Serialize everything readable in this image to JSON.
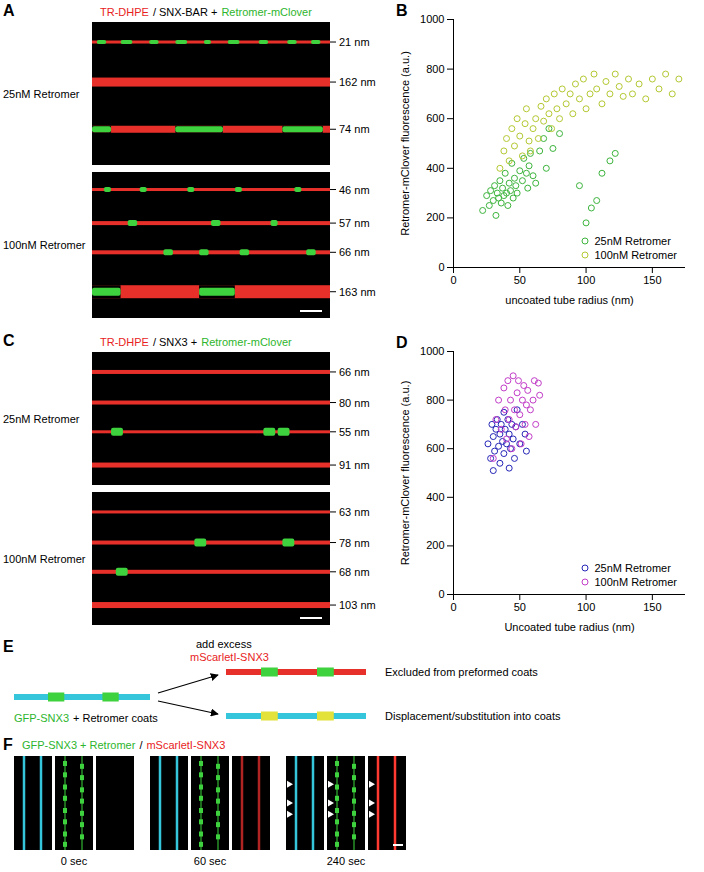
{
  "panels": {
    "A": {
      "letter": "A",
      "header": [
        {
          "text": "TR-DHPE",
          "color": "#e8231d"
        },
        {
          "text": "/ SNX-BAR +",
          "color": "#000000"
        },
        {
          "text": "Retromer-mClover",
          "color": "#2db52d"
        }
      ],
      "groups": [
        {
          "label": "25nM Retromer",
          "tubes": [
            "21 nm",
            "162 nm",
            "74 nm"
          ]
        },
        {
          "label": "100nM Retromer",
          "tubes": [
            "46 nm",
            "57 nm",
            "66 nm",
            "163 nm"
          ]
        }
      ]
    },
    "C": {
      "letter": "C",
      "header": [
        {
          "text": "TR-DHPE",
          "color": "#e8231d"
        },
        {
          "text": "/ SNX3 +",
          "color": "#000000"
        },
        {
          "text": "Retromer-mClover",
          "color": "#2db52d"
        }
      ],
      "groups": [
        {
          "label": "25nM Retromer",
          "tubes": [
            "66 nm",
            "80 nm",
            "55 nm",
            "91 nm"
          ]
        },
        {
          "label": "100nM Retromer",
          "tubes": [
            "63 nm",
            "78 nm",
            "68 nm",
            "103 nm"
          ]
        }
      ]
    },
    "E": {
      "letter": "E",
      "start": [
        {
          "text": "GFP-SNX3",
          "color": "#2db52d"
        },
        {
          "text": "+ Retromer coats",
          "color": "#000000"
        }
      ],
      "action": [
        {
          "text": "add excess",
          "color": "#000000"
        },
        {
          "text": "mScarletI-SNX3",
          "color": "#e8231d"
        }
      ],
      "outcomes": [
        "Excluded from preformed coats",
        "Displacement/substitution into coats"
      ]
    },
    "F": {
      "letter": "F",
      "header": [
        {
          "text": "GFP-SNX3 + Retromer",
          "color": "#2db52d"
        },
        {
          "text": "/",
          "color": "#000000"
        },
        {
          "text": "mScarletI-SNX3",
          "color": "#e8231d"
        }
      ],
      "times": [
        "0 sec",
        "60 sec",
        "240 sec"
      ]
    }
  },
  "chart_data": [
    {
      "panel": "B",
      "type": "scatter",
      "xlabel": "uncoated tube radius (nm)",
      "ylabel": "Retromer-mClover fluorescence (a.u.)",
      "xlim": [
        0,
        175
      ],
      "xticks": [
        0,
        50,
        100,
        150
      ],
      "ylim": [
        0,
        1000
      ],
      "yticks": [
        0,
        200,
        400,
        600,
        800,
        1000
      ],
      "legend": "bottom-right",
      "marker": "open circle",
      "series": [
        {
          "name": "25nM Retromer",
          "color": "#3cb43c",
          "x": [
            22,
            25,
            27,
            28,
            30,
            31,
            32,
            33,
            34,
            35,
            36,
            37,
            38,
            39,
            40,
            41,
            42,
            43,
            44,
            45,
            46,
            47,
            48,
            50,
            52,
            53,
            55,
            56,
            57,
            58,
            60,
            62,
            65,
            68,
            70,
            72,
            75,
            80,
            95,
            100,
            104,
            108,
            112,
            118,
            122
          ],
          "values": [
            230,
            290,
            250,
            310,
            270,
            330,
            210,
            300,
            280,
            350,
            260,
            320,
            290,
            380,
            300,
            250,
            340,
            310,
            420,
            280,
            360,
            330,
            300,
            390,
            350,
            440,
            380,
            320,
            410,
            460,
            370,
            340,
            470,
            520,
            400,
            560,
            480,
            540,
            330,
            180,
            240,
            270,
            380,
            430,
            460
          ]
        },
        {
          "name": "100nM Retromer",
          "color": "#b5c832",
          "x": [
            35,
            38,
            40,
            42,
            44,
            46,
            48,
            50,
            52,
            54,
            55,
            57,
            58,
            60,
            62,
            64,
            66,
            68,
            70,
            72,
            74,
            76,
            78,
            80,
            82,
            85,
            88,
            90,
            92,
            95,
            98,
            100,
            103,
            106,
            108,
            112,
            115,
            118,
            122,
            125,
            128,
            132,
            135,
            140,
            145,
            150,
            155,
            160,
            165,
            170
          ],
          "values": [
            400,
            470,
            520,
            430,
            560,
            490,
            600,
            530,
            450,
            580,
            640,
            510,
            470,
            560,
            600,
            520,
            650,
            590,
            680,
            620,
            560,
            700,
            640,
            600,
            720,
            660,
            700,
            620,
            740,
            680,
            760,
            640,
            700,
            780,
            720,
            660,
            750,
            700,
            780,
            730,
            690,
            760,
            700,
            740,
            680,
            760,
            720,
            780,
            700,
            760
          ]
        }
      ]
    },
    {
      "panel": "D",
      "type": "scatter",
      "xlabel": "Uncoated tube radius (nm)",
      "ylabel": "Retromer-mClover fluorescence (a.u.)",
      "xlim": [
        0,
        175
      ],
      "xticks": [
        0,
        50,
        100,
        150
      ],
      "ylim": [
        0,
        1000
      ],
      "yticks": [
        0,
        200,
        400,
        600,
        800,
        1000
      ],
      "legend": "bottom-right",
      "marker": "open circle",
      "series": [
        {
          "name": "25nM Retromer",
          "color": "#2626b8",
          "x": [
            26,
            28,
            29,
            30,
            31,
            32,
            33,
            34,
            35,
            35,
            36,
            37,
            38,
            38,
            39,
            40,
            41,
            42,
            43,
            44,
            45,
            46,
            47,
            48,
            50,
            52,
            54,
            55,
            30,
            42
          ],
          "values": [
            620,
            560,
            700,
            650,
            590,
            680,
            720,
            610,
            660,
            540,
            700,
            630,
            750,
            580,
            680,
            620,
            720,
            660,
            600,
            700,
            640,
            560,
            690,
            760,
            620,
            700,
            660,
            590,
            510,
            520
          ]
        },
        {
          "name": "100nM Retromer",
          "color": "#c23cc8",
          "x": [
            32,
            34,
            36,
            38,
            39,
            40,
            41,
            42,
            43,
            44,
            45,
            46,
            47,
            48,
            49,
            50,
            51,
            52,
            53,
            54,
            55,
            56,
            57,
            58,
            60,
            61,
            62,
            64,
            65,
            30
          ],
          "values": [
            720,
            800,
            680,
            850,
            760,
            640,
            880,
            720,
            800,
            600,
            900,
            760,
            690,
            830,
            880,
            740,
            620,
            800,
            860,
            700,
            780,
            840,
            650,
            760,
            800,
            880,
            700,
            870,
            820,
            560
          ]
        }
      ]
    }
  ]
}
